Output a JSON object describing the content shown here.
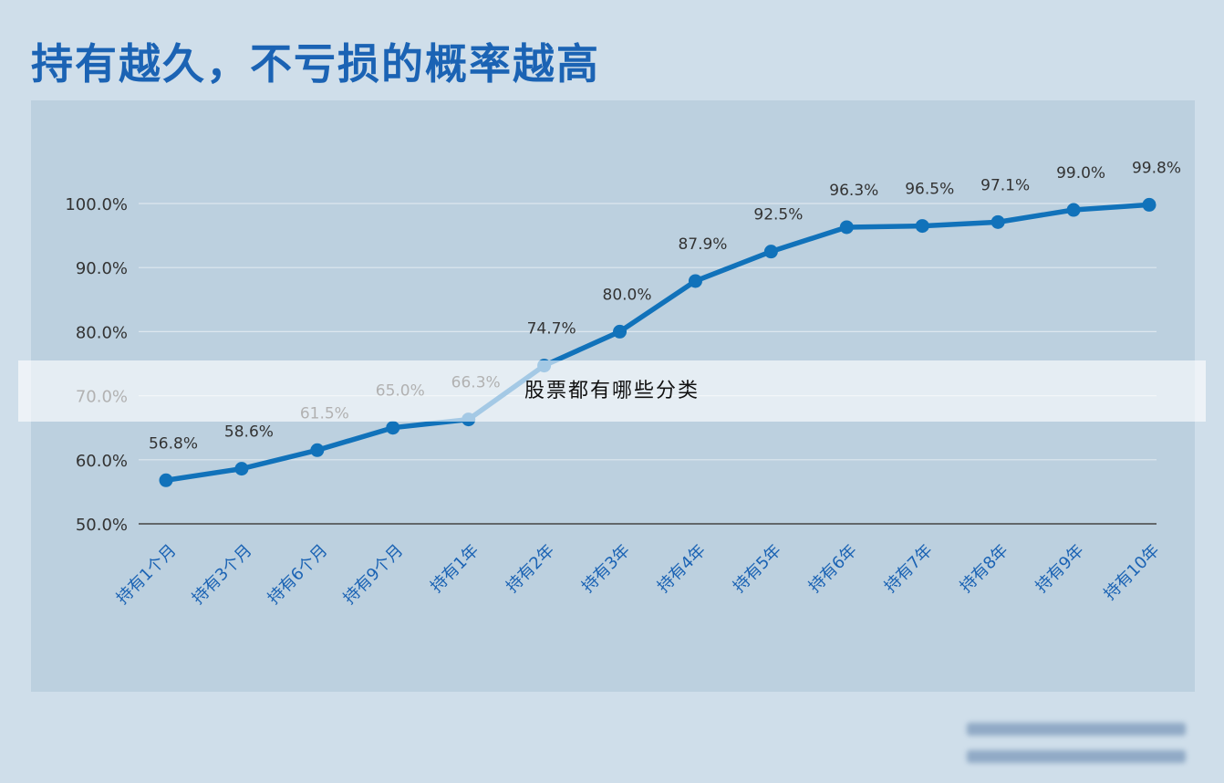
{
  "title": "持有越久，不亏损的概率越高",
  "overlay_text": "股票都有哪些分类",
  "colors": {
    "background": "#cfdeea",
    "plot_area": "#bcd0df",
    "title": "#1b63b4",
    "line": "#1172ba",
    "tick_labels": "#1b63b4",
    "text": "#333333"
  },
  "chart_data": {
    "type": "line",
    "title": "持有越久，不亏损的概率越高",
    "xlabel": "",
    "ylabel": "",
    "categories": [
      "持有1个月",
      "持有3个月",
      "持有6个月",
      "持有9个月",
      "持有1年",
      "持有2年",
      "持有3年",
      "持有4年",
      "持有5年",
      "持有6年",
      "持有7年",
      "持有8年",
      "持有9年",
      "持有10年"
    ],
    "series": [
      {
        "values": [
          56.8,
          58.6,
          61.5,
          65.0,
          66.3,
          74.7,
          80.0,
          87.9,
          92.5,
          96.3,
          96.5,
          97.1,
          99.0,
          99.8
        ],
        "labels": [
          "56.8%",
          "58.6%",
          "61.5%",
          "65.0%",
          "66.3%",
          "74.7%",
          "80.0%",
          "87.9%",
          "92.5%",
          "96.3%",
          "96.5%",
          "97.1%",
          "99.0%",
          "99.8%"
        ]
      }
    ],
    "ylim": [
      50,
      100
    ],
    "yticks": [
      50,
      60,
      70,
      80,
      90,
      100
    ],
    "ytick_labels": [
      "50.0%",
      "60.0%",
      "70.0%",
      "80.0%",
      "90.0%",
      "100.0%"
    ],
    "grid": true,
    "legend": "none"
  }
}
